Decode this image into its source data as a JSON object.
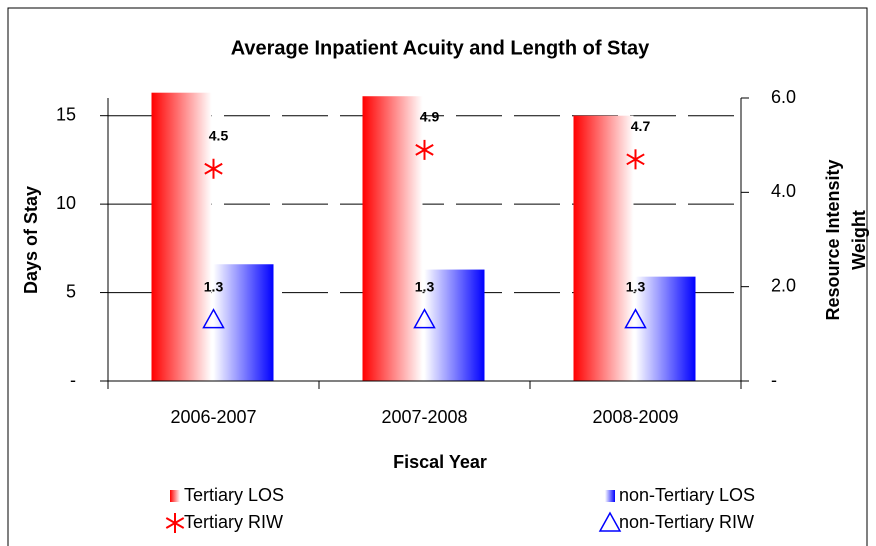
{
  "chart_data": {
    "type": "bar_line",
    "title": "Average Inpatient Acuity and Length of Stay",
    "xlabel": "Fiscal Year",
    "ylabel": "Days of Stay",
    "y2label": [
      "Resource Intensity",
      "Weight"
    ],
    "categories": [
      "2006-2007",
      "2007-2008",
      "2008-2009"
    ],
    "series": [
      {
        "name": "Tertiary LOS",
        "color": "#ff0000",
        "kind": "bar",
        "values": [
          16.3,
          16.1,
          15.0
        ]
      },
      {
        "name": "non-Tertiary LOS",
        "color": "#0000ff",
        "kind": "bar",
        "values": [
          6.6,
          6.3,
          5.9
        ]
      },
      {
        "name": "Tertiary RIW",
        "color": "#ff0000",
        "kind": "asterisk",
        "axis": "y2",
        "values": [
          4.5,
          4.9,
          4.7
        ]
      },
      {
        "name": "non-Tertiary RIW",
        "color": "#0000ff",
        "kind": "triangle",
        "axis": "y2",
        "values": [
          1.3,
          1.3,
          1.3
        ]
      }
    ],
    "ylim": [
      0,
      16
    ],
    "yticks": [
      {
        "value": 0,
        "label": "-"
      },
      5,
      10,
      15
    ],
    "y2lim": [
      0,
      6
    ],
    "y2ticks": [
      {
        "value": 0,
        "label": "-"
      },
      {
        "value": 2,
        "label": "2.0"
      },
      {
        "value": 4,
        "label": "4.0"
      },
      {
        "value": 6,
        "label": "6.0"
      }
    ],
    "grid": true
  }
}
